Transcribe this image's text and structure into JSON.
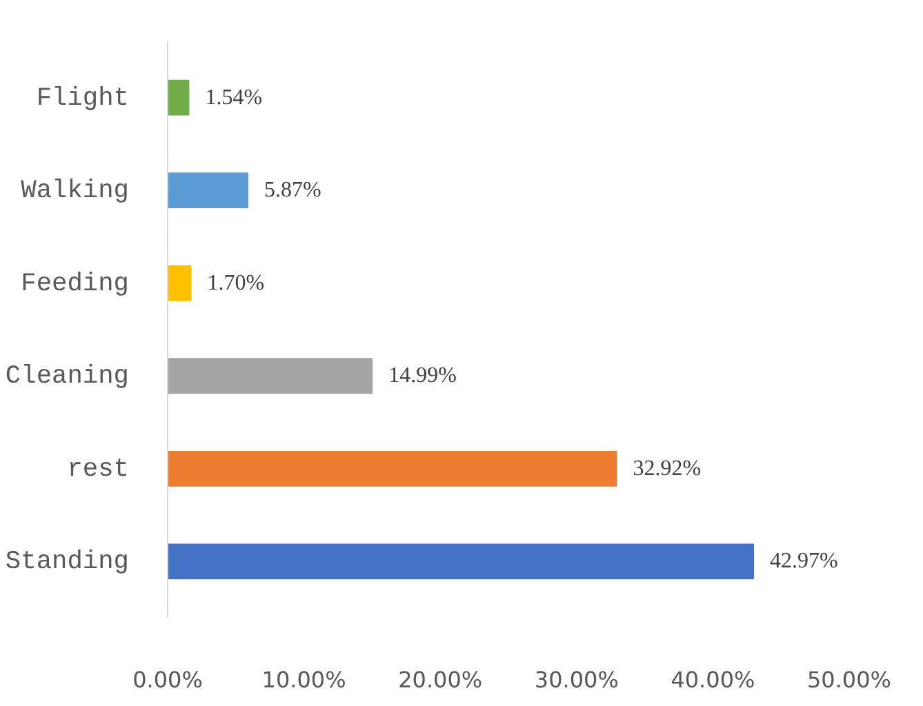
{
  "chart_data": {
    "type": "bar",
    "orientation": "horizontal",
    "categories": [
      "Flight",
      "Walking",
      "Feeding",
      "Cleaning",
      "rest",
      "Standing"
    ],
    "values": [
      1.54,
      5.87,
      1.7,
      14.99,
      32.92,
      42.97
    ],
    "colors": [
      "#70ad47",
      "#5b9bd5",
      "#ffc000",
      "#a5a5a5",
      "#ed7d31",
      "#4472c4"
    ],
    "value_labels": [
      "1.54%",
      "5.87%",
      "1.70%",
      "14.99%",
      "32.92%",
      "42.97%"
    ],
    "xlim": [
      0,
      50
    ],
    "xticks": [
      {
        "value": 0,
        "label": "0.00%"
      },
      {
        "value": 10,
        "label": "10.00%"
      },
      {
        "value": 20,
        "label": "20.00%"
      },
      {
        "value": 30,
        "label": "30.00%"
      },
      {
        "value": 40,
        "label": "40.00%"
      },
      {
        "value": 50,
        "label": "50.00%"
      }
    ],
    "grid": false
  }
}
